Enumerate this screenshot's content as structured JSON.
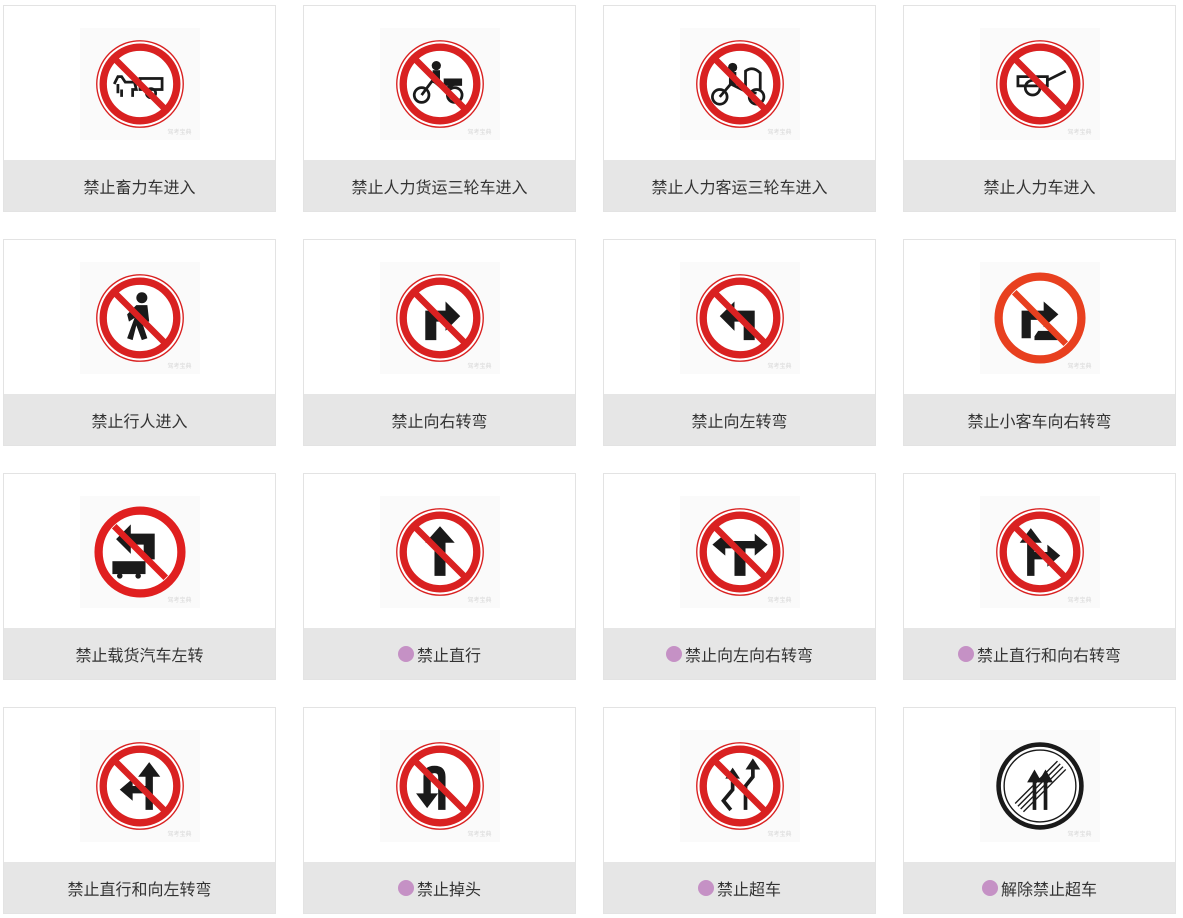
{
  "accent": {
    "caption_bg": "#e6e6e6",
    "dot": "#c591c5",
    "sign_red": "#d92121"
  },
  "watermark": "驾考宝典",
  "signs": [
    {
      "label": "禁止畜力车进入",
      "icon": "no-animal-cart-icon",
      "dot": false
    },
    {
      "label": "禁止人力货运三轮车进入",
      "icon": "no-cargo-tricycle-icon",
      "dot": false
    },
    {
      "label": "禁止人力客运三轮车进入",
      "icon": "no-passenger-tricycle-icon",
      "dot": false
    },
    {
      "label": "禁止人力车进入",
      "icon": "no-handcart-icon",
      "dot": false
    },
    {
      "label": "禁止行人进入",
      "icon": "no-pedestrian-icon",
      "dot": false
    },
    {
      "label": "禁止向右转弯",
      "icon": "no-right-turn-icon",
      "dot": false
    },
    {
      "label": "禁止向左转弯",
      "icon": "no-left-turn-icon",
      "dot": false
    },
    {
      "label": "禁止小客车向右转弯",
      "icon": "no-car-right-turn-icon",
      "dot": false
    },
    {
      "label": "禁止载货汽车左转",
      "icon": "no-truck-left-turn-icon",
      "dot": false
    },
    {
      "label": "禁止直行",
      "icon": "no-straight-icon",
      "dot": true
    },
    {
      "label": "禁止向左向右转弯",
      "icon": "no-left-right-turn-icon",
      "dot": true
    },
    {
      "label": "禁止直行和向右转弯",
      "icon": "no-straight-right-icon",
      "dot": true
    },
    {
      "label": "禁止直行和向左转弯",
      "icon": "no-straight-left-icon",
      "dot": false
    },
    {
      "label": "禁止掉头",
      "icon": "no-u-turn-icon",
      "dot": true
    },
    {
      "label": "禁止超车",
      "icon": "no-overtaking-icon",
      "dot": true
    },
    {
      "label": "解除禁止超车",
      "icon": "end-no-overtaking-icon",
      "dot": true
    }
  ]
}
